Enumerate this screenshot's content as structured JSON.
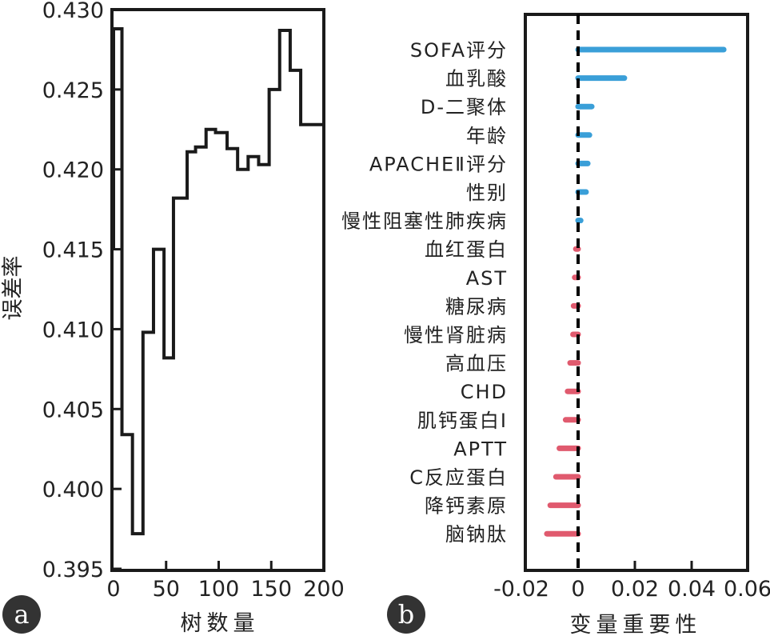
{
  "panel_labels": [
    "a",
    "b"
  ],
  "colors": {
    "positive": "#3a9fd8",
    "negative": "#e05a6e",
    "line": "#1a1a1a",
    "badge": "#333333"
  },
  "chart_data": [
    {
      "type": "line",
      "step": true,
      "xlabel": "树数量",
      "ylabel": "误差率",
      "xlim": [
        0,
        200
      ],
      "ylim": [
        0.395,
        0.43
      ],
      "xticks": [
        "0",
        "50",
        "100",
        "150",
        "200"
      ],
      "xtick_values": [
        0,
        50,
        100,
        150,
        200
      ],
      "yticks": [
        "0.395",
        "0.400",
        "0.405",
        "0.410",
        "0.415",
        "0.420",
        "0.425",
        "0.430"
      ],
      "ytick_values": [
        0.395,
        0.4,
        0.405,
        0.41,
        0.415,
        0.42,
        0.425,
        0.43
      ],
      "x": [
        0,
        8,
        18,
        28,
        38,
        48,
        57,
        70,
        78,
        88,
        97,
        108,
        118,
        128,
        138,
        148,
        158,
        168,
        178,
        188,
        200
      ],
      "y": [
        0.415,
        0.4288,
        0.4034,
        0.3972,
        0.4098,
        0.415,
        0.4082,
        0.4182,
        0.4211,
        0.4214,
        0.4225,
        0.4223,
        0.4213,
        0.42,
        0.4208,
        0.4203,
        0.425,
        0.4287,
        0.4262,
        0.4228,
        0.4228
      ]
    },
    {
      "type": "bar",
      "orientation": "horizontal",
      "xlabel": "变量重要性",
      "xlim": [
        -0.019,
        0.06
      ],
      "xticks": [
        "-0.02",
        "0",
        "0.02",
        "0.04",
        "0.06"
      ],
      "xtick_values": [
        -0.02,
        0,
        0.02,
        0.04,
        0.06
      ],
      "categories": [
        "SOFA评分",
        "血乳酸",
        "D-二聚体",
        "年龄",
        "APACHEⅡ评分",
        "性别",
        "慢性阻塞性肺疾病",
        "血红蛋白",
        "AST",
        "糖尿病",
        "慢性肾脏病",
        "高血压",
        "CHD",
        "肌钙蛋白I",
        "APTT",
        "C反应蛋白",
        "降钙素原",
        "脑钠肽"
      ],
      "values": [
        0.0513,
        0.0163,
        0.0048,
        0.004,
        0.0034,
        0.0028,
        0.0009,
        -0.0008,
        -0.0012,
        -0.0016,
        -0.0018,
        -0.0028,
        -0.0037,
        -0.0044,
        -0.0066,
        -0.0078,
        -0.0098,
        -0.011
      ]
    }
  ]
}
